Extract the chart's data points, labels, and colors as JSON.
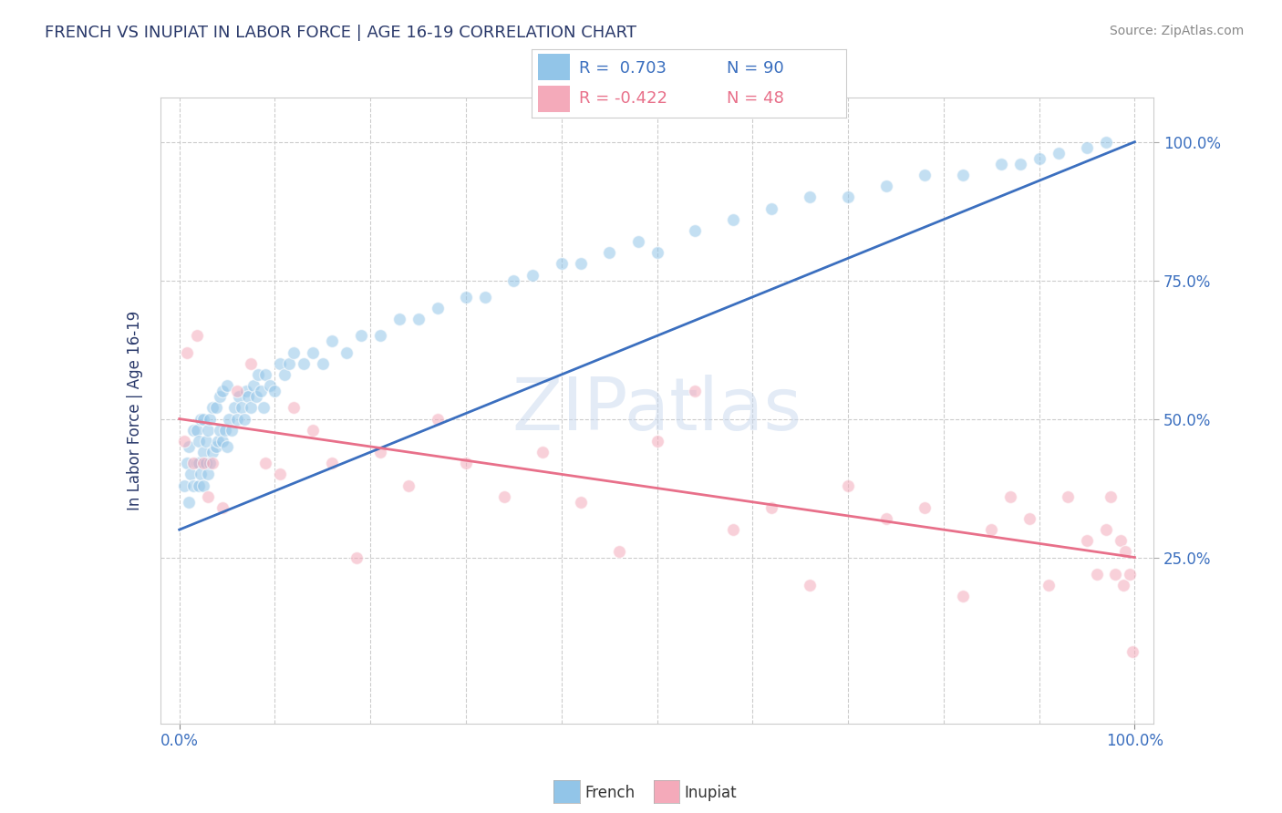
{
  "title": "FRENCH VS INUPIAT IN LABOR FORCE | AGE 16-19 CORRELATION CHART",
  "source": "Source: ZipAtlas.com",
  "ylabel": "In Labor Force | Age 16-19",
  "xlim": [
    -0.02,
    1.02
  ],
  "ylim": [
    -0.05,
    1.08
  ],
  "french_R": 0.703,
  "french_N": 90,
  "inupiat_R": -0.422,
  "inupiat_N": 48,
  "french_color": "#92C5E8",
  "inupiat_color": "#F4AABA",
  "french_line_color": "#3B6FBF",
  "inupiat_line_color": "#E8708A",
  "title_color": "#2B3A6B",
  "source_color": "#888888",
  "background_color": "#FFFFFF",
  "grid_color": "#CCCCCC",
  "french_line_start_y": 0.3,
  "french_line_end_y": 1.0,
  "inupiat_line_start_y": 0.5,
  "inupiat_line_end_y": 0.25,
  "french_x": [
    0.005,
    0.008,
    0.01,
    0.01,
    0.012,
    0.015,
    0.015,
    0.018,
    0.018,
    0.02,
    0.02,
    0.02,
    0.022,
    0.022,
    0.025,
    0.025,
    0.025,
    0.028,
    0.028,
    0.03,
    0.03,
    0.032,
    0.032,
    0.035,
    0.035,
    0.038,
    0.038,
    0.04,
    0.042,
    0.042,
    0.045,
    0.045,
    0.048,
    0.05,
    0.05,
    0.052,
    0.055,
    0.058,
    0.06,
    0.062,
    0.065,
    0.068,
    0.07,
    0.072,
    0.075,
    0.078,
    0.08,
    0.082,
    0.085,
    0.088,
    0.09,
    0.095,
    0.1,
    0.105,
    0.11,
    0.115,
    0.12,
    0.13,
    0.14,
    0.15,
    0.16,
    0.175,
    0.19,
    0.21,
    0.23,
    0.25,
    0.27,
    0.3,
    0.32,
    0.35,
    0.37,
    0.4,
    0.42,
    0.45,
    0.48,
    0.5,
    0.54,
    0.58,
    0.62,
    0.66,
    0.7,
    0.74,
    0.78,
    0.82,
    0.86,
    0.88,
    0.9,
    0.92,
    0.95,
    0.97
  ],
  "french_y": [
    0.38,
    0.42,
    0.35,
    0.45,
    0.4,
    0.38,
    0.48,
    0.42,
    0.48,
    0.38,
    0.42,
    0.46,
    0.4,
    0.5,
    0.38,
    0.44,
    0.5,
    0.42,
    0.46,
    0.4,
    0.48,
    0.42,
    0.5,
    0.44,
    0.52,
    0.45,
    0.52,
    0.46,
    0.48,
    0.54,
    0.46,
    0.55,
    0.48,
    0.45,
    0.56,
    0.5,
    0.48,
    0.52,
    0.5,
    0.54,
    0.52,
    0.5,
    0.55,
    0.54,
    0.52,
    0.56,
    0.54,
    0.58,
    0.55,
    0.52,
    0.58,
    0.56,
    0.55,
    0.6,
    0.58,
    0.6,
    0.62,
    0.6,
    0.62,
    0.6,
    0.64,
    0.62,
    0.65,
    0.65,
    0.68,
    0.68,
    0.7,
    0.72,
    0.72,
    0.75,
    0.76,
    0.78,
    0.78,
    0.8,
    0.82,
    0.8,
    0.84,
    0.86,
    0.88,
    0.9,
    0.9,
    0.92,
    0.94,
    0.94,
    0.96,
    0.96,
    0.97,
    0.98,
    0.99,
    1.0
  ],
  "inupiat_x": [
    0.005,
    0.008,
    0.015,
    0.018,
    0.025,
    0.03,
    0.035,
    0.045,
    0.06,
    0.075,
    0.09,
    0.105,
    0.12,
    0.14,
    0.16,
    0.185,
    0.21,
    0.24,
    0.27,
    0.3,
    0.34,
    0.38,
    0.42,
    0.46,
    0.5,
    0.54,
    0.58,
    0.62,
    0.66,
    0.7,
    0.74,
    0.78,
    0.82,
    0.85,
    0.87,
    0.89,
    0.91,
    0.93,
    0.95,
    0.96,
    0.97,
    0.975,
    0.98,
    0.985,
    0.988,
    0.99,
    0.995,
    0.998
  ],
  "inupiat_y": [
    0.46,
    0.62,
    0.42,
    0.65,
    0.42,
    0.36,
    0.42,
    0.34,
    0.55,
    0.6,
    0.42,
    0.4,
    0.52,
    0.48,
    0.42,
    0.25,
    0.44,
    0.38,
    0.5,
    0.42,
    0.36,
    0.44,
    0.35,
    0.26,
    0.46,
    0.55,
    0.3,
    0.34,
    0.2,
    0.38,
    0.32,
    0.34,
    0.18,
    0.3,
    0.36,
    0.32,
    0.2,
    0.36,
    0.28,
    0.22,
    0.3,
    0.36,
    0.22,
    0.28,
    0.2,
    0.26,
    0.22,
    0.08
  ],
  "marker_size": 100,
  "marker_alpha": 0.55,
  "marker_linewidth": 1.0,
  "marker_edgecolor": "#FFFFFF",
  "ytick_positions": [
    0.25,
    0.5,
    0.75,
    1.0
  ],
  "ytick_labels": [
    "25.0%",
    "50.0%",
    "75.0%",
    "100.0%"
  ],
  "xtick_positions": [
    0.0,
    1.0
  ],
  "xtick_labels": [
    "0.0%",
    "100.0%"
  ]
}
